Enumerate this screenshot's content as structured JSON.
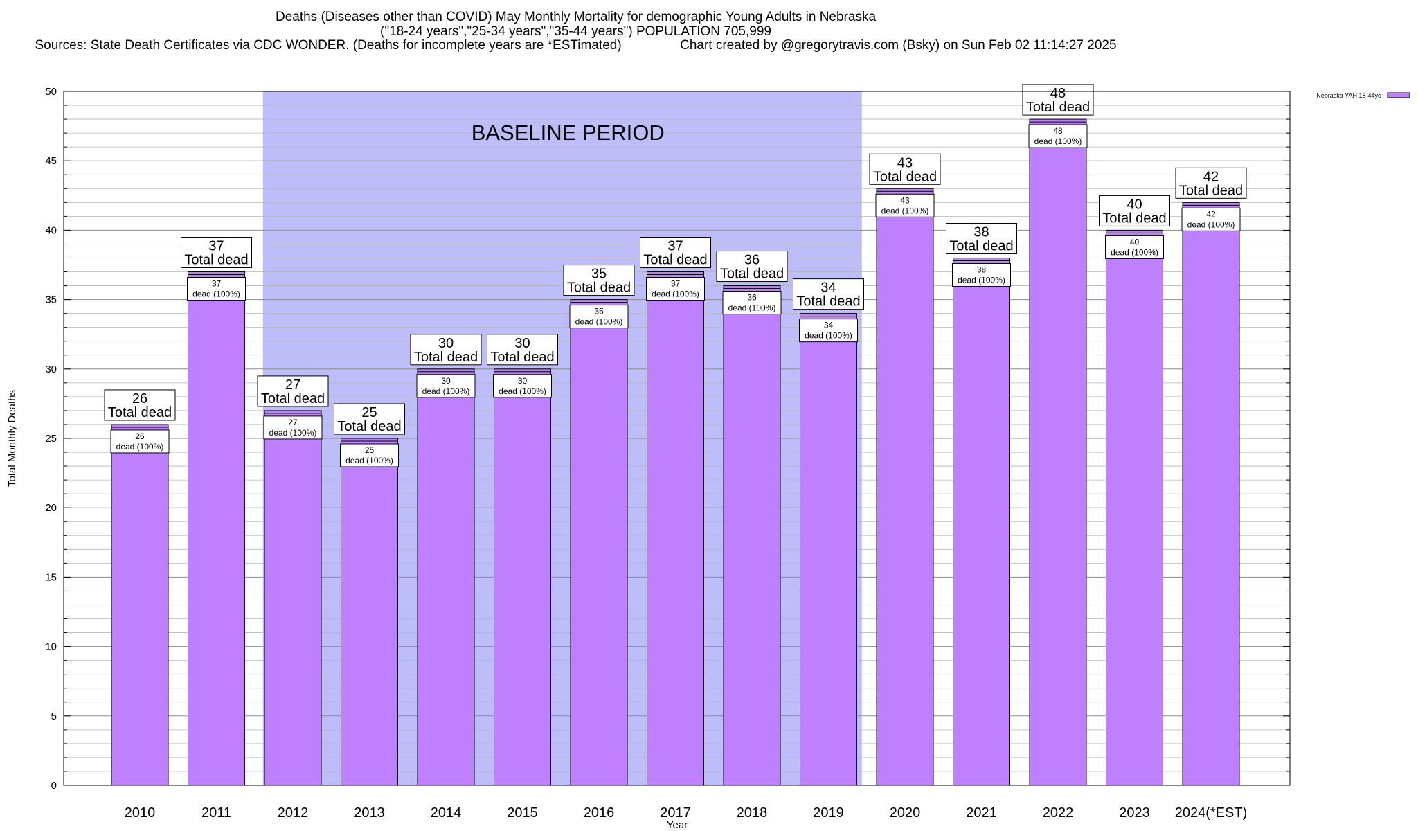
{
  "chart_data": {
    "type": "bar",
    "title": "Deaths (Diseases other than COVID) May Monthly Mortality for demographic Young Adults in Nebraska",
    "subtitle": "(\"18-24 years\",\"25-34 years\",\"35-44 years\") POPULATION 705,999",
    "source_line": "Sources: State Death Certificates via CDC WONDER. (Deaths for incomplete years are *ESTimated)                Chart created by @gregorytravis.com (Bsky) on Sun Feb 02 11:14:27 2025",
    "xlabel": "Year",
    "ylabel": "Total Monthly Deaths",
    "ylim": [
      0,
      50
    ],
    "ytick_step": 5,
    "categories": [
      "2010",
      "2011",
      "2012",
      "2013",
      "2014",
      "2015",
      "2016",
      "2017",
      "2018",
      "2019",
      "2020",
      "2021",
      "2022",
      "2023",
      "2024(*EST)"
    ],
    "series": [
      {
        "name": "Nebraska YAH 18-44yo",
        "color": "#bf80ff",
        "values": [
          26,
          37,
          27,
          25,
          30,
          30,
          35,
          37,
          36,
          34,
          43,
          38,
          48,
          40,
          42
        ]
      }
    ],
    "total_label_suffix": "Total dead",
    "inner_label_suffix": "dead (100%)",
    "baseline": {
      "label": "BASELINE PERIOD",
      "start": "2012",
      "end": "2019",
      "color": "#bdbdfa"
    },
    "grid": true,
    "legend_position": "top-right"
  }
}
